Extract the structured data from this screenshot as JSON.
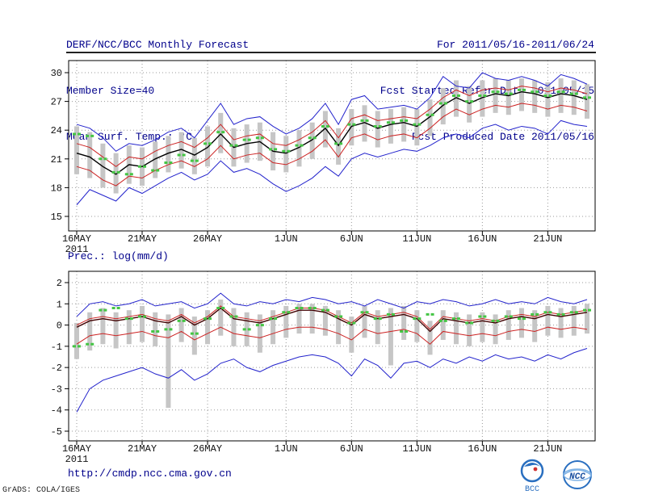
{
  "header": {
    "left": [
      "DERF/NCC/BCC Monthly Forecast",
      "Member Size=40",
      "Mean Surf. Temp.: °C"
    ],
    "right": [
      "For 2011/05/16-2011/06/24",
      "Fcst Started Refer Date 2011/05/15",
      "Fcst Produced Date 2011/05/16"
    ]
  },
  "footer": {
    "url": "http://cmdp.ncc.cma.gov.cn",
    "credit": "GrADS: COLA/IGES",
    "logos": [
      "BCC",
      "NCC"
    ]
  },
  "chart_data": [
    {
      "type": "line",
      "name": "temperature-forecast",
      "title": "Mean Surf. Temp.: °C",
      "xlabel": "",
      "ylabel": "",
      "ylim": [
        15,
        30
      ],
      "yticks": [
        15,
        18,
        21,
        24,
        27,
        30
      ],
      "grid": true,
      "legend": "none",
      "n_points": 40,
      "x_tick_labels": [
        "16MAY",
        "21MAY",
        "26MAY",
        "1JUN",
        "6JUN",
        "11JUN",
        "16JUN",
        "21JUN"
      ],
      "x_tick_positions": [
        0,
        5,
        10,
        16,
        21,
        26,
        31,
        36
      ],
      "x_year_label": "2011",
      "series": [
        {
          "name": "ensemble-max",
          "color": "#2222cc",
          "width": 1,
          "values": [
            24.6,
            24.2,
            23.2,
            21.8,
            22.6,
            22.4,
            23.0,
            23.8,
            24.2,
            23.2,
            25.0,
            26.8,
            24.6,
            25.2,
            25.4,
            24.4,
            23.6,
            24.2,
            25.2,
            26.8,
            24.6,
            27.2,
            27.6,
            26.2,
            26.4,
            26.6,
            26.2,
            27.4,
            29.6,
            28.6,
            28.4,
            30.0,
            29.4,
            29.2,
            29.6,
            29.2,
            28.6,
            29.8,
            29.4,
            28.8
          ]
        },
        {
          "name": "upper-quartile",
          "color": "#cc2222",
          "width": 1,
          "values": [
            22.6,
            22.2,
            21.2,
            20.2,
            21.2,
            21.0,
            21.8,
            22.4,
            22.8,
            22.2,
            23.2,
            24.6,
            23.0,
            23.4,
            23.6,
            22.6,
            22.4,
            23.0,
            23.8,
            25.0,
            23.2,
            25.2,
            25.6,
            25.0,
            25.2,
            25.4,
            25.2,
            26.2,
            27.4,
            28.2,
            27.6,
            28.2,
            28.4,
            28.2,
            28.6,
            28.4,
            28.0,
            28.4,
            28.2,
            27.8
          ]
        },
        {
          "name": "ensemble-mean",
          "color": "#000000",
          "width": 1.4,
          "values": [
            21.6,
            21.2,
            20.2,
            19.4,
            20.4,
            20.2,
            21.0,
            21.6,
            22.0,
            21.4,
            22.2,
            23.6,
            22.2,
            22.6,
            22.8,
            21.8,
            21.6,
            22.2,
            23.0,
            24.2,
            22.4,
            24.4,
            24.8,
            24.2,
            24.6,
            24.8,
            24.4,
            25.4,
            26.6,
            27.4,
            26.8,
            27.4,
            27.8,
            27.6,
            28.0,
            27.8,
            27.4,
            27.8,
            27.6,
            27.2
          ]
        },
        {
          "name": "lower-quartile",
          "color": "#cc2222",
          "width": 1,
          "values": [
            20.2,
            19.8,
            18.8,
            18.2,
            19.2,
            19.0,
            19.8,
            20.4,
            20.8,
            20.2,
            21.0,
            22.4,
            21.0,
            21.4,
            21.6,
            20.6,
            20.4,
            21.0,
            21.8,
            23.0,
            21.2,
            23.2,
            23.6,
            23.0,
            23.4,
            23.6,
            23.2,
            24.2,
            25.4,
            26.2,
            25.6,
            26.2,
            26.6,
            26.4,
            26.8,
            26.6,
            26.2,
            26.6,
            26.4,
            26.0
          ]
        },
        {
          "name": "ensemble-min",
          "color": "#2222cc",
          "width": 1,
          "values": [
            16.2,
            17.8,
            17.2,
            16.6,
            18.0,
            17.4,
            18.2,
            19.0,
            19.6,
            18.8,
            19.4,
            20.8,
            19.6,
            20.0,
            19.4,
            18.4,
            17.6,
            18.2,
            19.0,
            20.2,
            19.2,
            21.0,
            21.6,
            21.2,
            21.6,
            22.0,
            21.8,
            22.4,
            23.2,
            23.6,
            23.2,
            24.2,
            24.6,
            24.0,
            24.4,
            24.2,
            23.6,
            25.0,
            24.6,
            24.4
          ]
        }
      ],
      "dashes": {
        "name": "observation-dash",
        "color": "#44c544",
        "values": [
          23.6,
          23.4,
          21.0,
          19.6,
          19.4,
          20.2,
          19.8,
          20.6,
          21.4,
          20.8,
          22.6,
          23.8,
          22.4,
          23.0,
          23.2,
          22.0,
          21.8,
          22.4,
          23.2,
          24.4,
          22.6,
          24.6,
          25.0,
          24.4,
          24.8,
          25.0,
          24.6,
          25.6,
          26.8,
          27.6,
          27.0,
          27.6,
          28.0,
          27.8,
          28.2,
          28.0,
          27.6,
          28.0,
          27.8,
          27.4
        ]
      },
      "bars": {
        "name": "ensemble-spread",
        "color": "#c6c6c6",
        "high": [
          24.4,
          23.8,
          22.6,
          21.6,
          22.4,
          22.2,
          22.8,
          23.4,
          23.8,
          23.2,
          24.4,
          25.8,
          24.2,
          24.6,
          24.8,
          23.8,
          23.4,
          24.0,
          24.8,
          26.0,
          24.2,
          26.2,
          26.6,
          26.0,
          26.2,
          26.4,
          26.2,
          27.2,
          28.4,
          29.2,
          28.6,
          29.2,
          29.4,
          29.2,
          29.4,
          29.2,
          29.0,
          29.4,
          29.2,
          28.8
        ],
        "low": [
          19.4,
          19.0,
          18.0,
          17.4,
          18.4,
          18.2,
          19.0,
          19.6,
          20.0,
          19.4,
          20.2,
          21.6,
          20.2,
          20.6,
          20.8,
          19.8,
          19.6,
          20.2,
          21.0,
          22.2,
          20.4,
          22.4,
          22.8,
          22.2,
          22.6,
          22.8,
          22.4,
          23.4,
          24.6,
          25.4,
          24.8,
          25.4,
          25.8,
          25.6,
          26.0,
          25.8,
          25.4,
          25.8,
          25.6,
          25.2
        ]
      }
    },
    {
      "type": "line",
      "name": "precipitation-forecast",
      "title": "Prec.: log(mm/d)",
      "xlabel": "",
      "ylabel": "",
      "ylim": [
        -5,
        2
      ],
      "yticks": [
        -5,
        -4,
        -3,
        -2,
        -1,
        0,
        1,
        2
      ],
      "grid": true,
      "legend": "none",
      "n_points": 40,
      "x_tick_labels": [
        "16MAY",
        "21MAY",
        "26MAY",
        "1JUN",
        "6JUN",
        "11JUN",
        "16JUN",
        "21JUN"
      ],
      "x_tick_positions": [
        0,
        5,
        10,
        16,
        21,
        26,
        31,
        36
      ],
      "x_year_label": "2011",
      "series": [
        {
          "name": "ensemble-max",
          "color": "#2222cc",
          "width": 1,
          "values": [
            0.4,
            1.0,
            1.1,
            0.9,
            1.0,
            1.2,
            0.9,
            1.0,
            1.1,
            0.8,
            1.0,
            1.5,
            1.0,
            0.9,
            1.1,
            1.0,
            1.2,
            1.1,
            1.3,
            1.2,
            1.0,
            1.1,
            0.9,
            1.2,
            1.0,
            0.8,
            1.1,
            1.0,
            1.2,
            1.1,
            0.9,
            1.0,
            1.2,
            1.0,
            1.1,
            1.0,
            1.3,
            1.1,
            1.0,
            1.2
          ]
        },
        {
          "name": "upper-quartile",
          "color": "#cc2222",
          "width": 1,
          "values": [
            0.0,
            0.3,
            0.4,
            0.3,
            0.4,
            0.5,
            0.3,
            0.2,
            0.5,
            0.1,
            0.4,
            0.9,
            0.4,
            0.3,
            0.2,
            0.4,
            0.6,
            0.8,
            0.8,
            0.7,
            0.4,
            0.1,
            0.6,
            0.4,
            0.5,
            0.6,
            0.4,
            -0.2,
            0.4,
            0.3,
            0.2,
            0.3,
            0.2,
            0.4,
            0.5,
            0.4,
            0.6,
            0.5,
            0.6,
            0.7
          ]
        },
        {
          "name": "ensemble-mean",
          "color": "#400000",
          "width": 1.4,
          "values": [
            -0.1,
            0.2,
            0.3,
            0.2,
            0.3,
            0.4,
            0.2,
            0.1,
            0.4,
            0.0,
            0.3,
            0.8,
            0.3,
            0.2,
            0.1,
            0.3,
            0.5,
            0.7,
            0.7,
            0.6,
            0.3,
            0.0,
            0.5,
            0.3,
            0.4,
            0.5,
            0.3,
            -0.3,
            0.3,
            0.2,
            0.1,
            0.2,
            0.1,
            0.3,
            0.4,
            0.3,
            0.5,
            0.4,
            0.5,
            0.6
          ]
        },
        {
          "name": "lower-quartile",
          "color": "#cc2222",
          "width": 1,
          "values": [
            -0.9,
            -0.5,
            -0.4,
            -0.5,
            -0.4,
            -0.3,
            -0.5,
            -0.6,
            -0.3,
            -0.7,
            -0.4,
            -0.1,
            -0.4,
            -0.5,
            -0.6,
            -0.4,
            -0.2,
            -0.1,
            -0.1,
            -0.2,
            -0.4,
            -0.7,
            -0.2,
            -0.4,
            -0.3,
            -0.2,
            -0.4,
            -0.9,
            -0.3,
            -0.4,
            -0.5,
            -0.4,
            -0.5,
            -0.3,
            -0.2,
            -0.3,
            -0.1,
            -0.2,
            -0.1,
            -0.2
          ]
        },
        {
          "name": "ensemble-min",
          "color": "#2222cc",
          "width": 1,
          "values": [
            -4.1,
            -3.0,
            -2.6,
            -2.4,
            -2.2,
            -2.0,
            -2.3,
            -2.5,
            -2.1,
            -2.6,
            -2.3,
            -1.8,
            -1.6,
            -2.0,
            -2.2,
            -1.9,
            -1.7,
            -1.5,
            -1.4,
            -1.5,
            -1.8,
            -2.4,
            -1.6,
            -1.9,
            -2.5,
            -1.8,
            -1.7,
            -2.0,
            -1.6,
            -1.8,
            -1.5,
            -1.7,
            -1.4,
            -1.6,
            -1.5,
            -1.7,
            -1.4,
            -1.6,
            -1.3,
            -1.1
          ]
        }
      ],
      "dashes": {
        "name": "observation-dash",
        "color": "#44c544",
        "values": [
          -1.0,
          -0.9,
          0.7,
          0.8,
          0.3,
          0.4,
          -0.3,
          -0.2,
          0.2,
          -0.4,
          0.3,
          0.8,
          0.4,
          -0.2,
          0.0,
          0.3,
          0.6,
          0.8,
          0.8,
          0.7,
          0.4,
          0.1,
          0.6,
          0.3,
          0.5,
          -0.3,
          0.3,
          0.5,
          0.2,
          0.3,
          0.1,
          0.4,
          0.2,
          0.4,
          0.3,
          0.5,
          0.6,
          0.5,
          0.6,
          0.7
        ]
      },
      "bars": {
        "name": "ensemble-spread",
        "color": "#c6c6c6",
        "high": [
          0.1,
          0.6,
          0.8,
          0.6,
          0.7,
          0.9,
          0.6,
          0.5,
          0.8,
          0.4,
          0.7,
          1.2,
          0.8,
          0.6,
          0.5,
          0.7,
          0.9,
          1.0,
          1.0,
          0.9,
          0.7,
          0.4,
          0.9,
          0.7,
          0.8,
          0.9,
          0.7,
          0.2,
          0.7,
          0.6,
          0.5,
          0.6,
          0.5,
          0.7,
          0.8,
          0.7,
          0.9,
          0.8,
          0.9,
          1.0
        ],
        "low": [
          -1.6,
          -1.2,
          -0.9,
          -1.1,
          -0.9,
          -0.8,
          -1.0,
          -3.9,
          -0.8,
          -1.4,
          -0.9,
          -0.5,
          -1.0,
          -1.0,
          -1.3,
          -0.9,
          -0.6,
          -0.4,
          -0.4,
          -0.5,
          -0.9,
          -1.3,
          -0.6,
          -0.9,
          -1.9,
          -0.7,
          -0.8,
          -1.4,
          -0.7,
          -0.9,
          -1.0,
          -0.8,
          -0.9,
          -0.7,
          -0.6,
          -0.8,
          -0.5,
          -0.6,
          -0.5,
          -0.4
        ]
      }
    }
  ]
}
